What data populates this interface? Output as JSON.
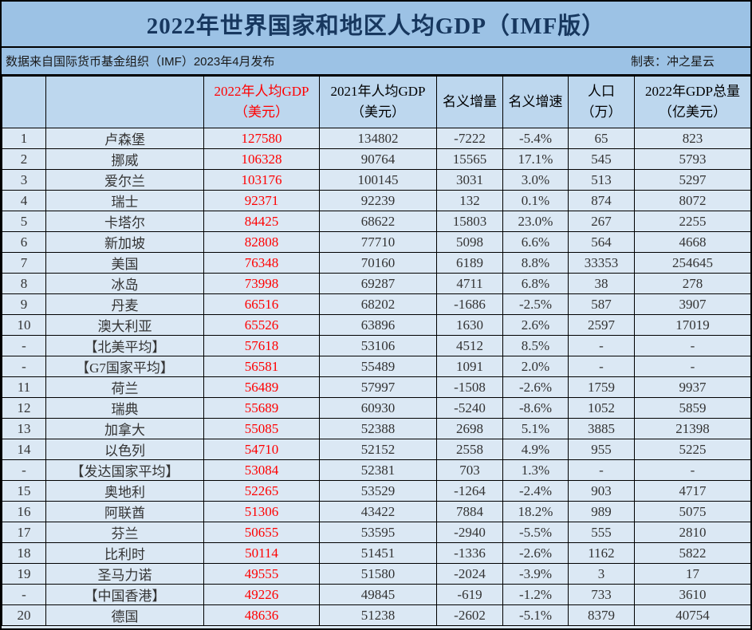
{
  "title": "2022年世界国家和地区人均GDP（IMF版）",
  "subtitle": {
    "source": "数据来自国际货币基金组织（IMF）2023年4月发布",
    "credit": "制表：冲之星云"
  },
  "colors": {
    "title_bg": "#9CC2E5",
    "header_bg": "#BDD7EE",
    "body_bg": "#DBE8F4",
    "title_text": "#17375E",
    "highlight_red": "#FF0000",
    "border": "#000000"
  },
  "table": {
    "headers": [
      {
        "line1": "",
        "line2": ""
      },
      {
        "line1": "",
        "line2": ""
      },
      {
        "line1": "2022年人均GDP",
        "line2": "（美元）"
      },
      {
        "line1": "2021年人均GDP",
        "line2": "（美元）"
      },
      {
        "line1": "名义增量",
        "line2": ""
      },
      {
        "line1": "名义增速",
        "line2": ""
      },
      {
        "line1": "人口",
        "line2": "（万）"
      },
      {
        "line1": "2022年GDP总量",
        "line2": "（亿美元）"
      }
    ],
    "rows": [
      [
        "1",
        "卢森堡",
        "127580",
        "134802",
        "-7222",
        "-5.4%",
        "65",
        "823"
      ],
      [
        "2",
        "挪威",
        "106328",
        "90764",
        "15565",
        "17.1%",
        "545",
        "5793"
      ],
      [
        "3",
        "爱尔兰",
        "103176",
        "100145",
        "3031",
        "3.0%",
        "513",
        "5297"
      ],
      [
        "4",
        "瑞士",
        "92371",
        "92239",
        "132",
        "0.1%",
        "874",
        "8072"
      ],
      [
        "5",
        "卡塔尔",
        "84425",
        "68622",
        "15803",
        "23.0%",
        "267",
        "2255"
      ],
      [
        "6",
        "新加坡",
        "82808",
        "77710",
        "5098",
        "6.6%",
        "564",
        "4668"
      ],
      [
        "7",
        "美国",
        "76348",
        "70160",
        "6189",
        "8.8%",
        "33353",
        "254645"
      ],
      [
        "8",
        "冰岛",
        "73998",
        "69287",
        "4711",
        "6.8%",
        "38",
        "278"
      ],
      [
        "9",
        "丹麦",
        "66516",
        "68202",
        "-1686",
        "-2.5%",
        "587",
        "3907"
      ],
      [
        "10",
        "澳大利亚",
        "65526",
        "63896",
        "1630",
        "2.6%",
        "2597",
        "17019"
      ],
      [
        "-",
        "【北美平均】",
        "57618",
        "53106",
        "4512",
        "8.5%",
        "-",
        "-"
      ],
      [
        "-",
        "【G7国家平均】",
        "56581",
        "55489",
        "1091",
        "2.0%",
        "-",
        "-"
      ],
      [
        "11",
        "荷兰",
        "56489",
        "57997",
        "-1508",
        "-2.6%",
        "1759",
        "9937"
      ],
      [
        "12",
        "瑞典",
        "55689",
        "60930",
        "-5240",
        "-8.6%",
        "1052",
        "5859"
      ],
      [
        "13",
        "加拿大",
        "55085",
        "52388",
        "2698",
        "5.1%",
        "3885",
        "21398"
      ],
      [
        "14",
        "以色列",
        "54710",
        "52152",
        "2558",
        "4.9%",
        "955",
        "5225"
      ],
      [
        "-",
        "【发达国家平均】",
        "53084",
        "52381",
        "703",
        "1.3%",
        "-",
        "-"
      ],
      [
        "15",
        "奥地利",
        "52265",
        "53529",
        "-1264",
        "-2.4%",
        "903",
        "4717"
      ],
      [
        "16",
        "阿联酋",
        "51306",
        "43422",
        "7884",
        "18.2%",
        "989",
        "5075"
      ],
      [
        "17",
        "芬兰",
        "50655",
        "53595",
        "-2940",
        "-5.5%",
        "555",
        "2810"
      ],
      [
        "18",
        "比利时",
        "50114",
        "51451",
        "-1336",
        "-2.6%",
        "1162",
        "5822"
      ],
      [
        "19",
        "圣马力诺",
        "49555",
        "51580",
        "-2024",
        "-3.9%",
        "3",
        "17"
      ],
      [
        "-",
        "【中国香港】",
        "49226",
        "49845",
        "-619",
        "-1.2%",
        "733",
        "3610"
      ],
      [
        "20",
        "德国",
        "48636",
        "51238",
        "-2602",
        "-5.1%",
        "8379",
        "40754"
      ]
    ]
  }
}
